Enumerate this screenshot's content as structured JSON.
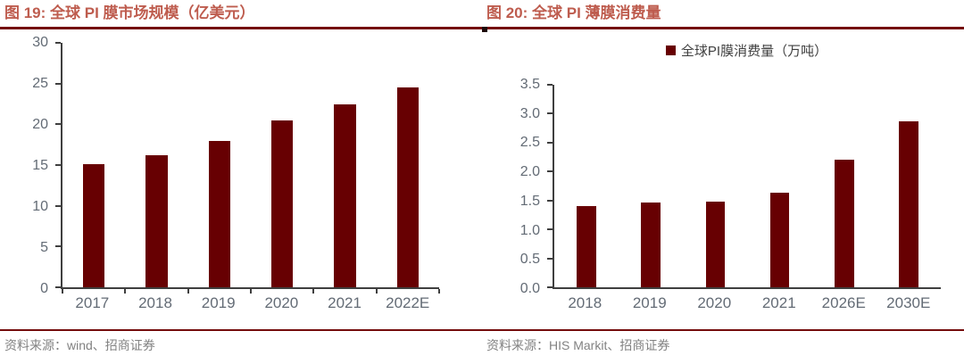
{
  "page": {
    "background": "#ffffff"
  },
  "colors": {
    "bar": "#670002",
    "title": "#be5c4e",
    "rule": "#740c0c",
    "axis": "#3f3f3f",
    "tick": "#636b75",
    "legend": "#3f3f3f",
    "source": "#828282"
  },
  "chart_data": [
    {
      "type": "bar",
      "title": "图 19: 全球 PI 膜市场规模（亿美元）",
      "categories": [
        "2017",
        "2018",
        "2019",
        "2020",
        "2021",
        "2022E"
      ],
      "values": [
        15.1,
        16.2,
        18.0,
        20.5,
        22.5,
        24.5
      ],
      "ylim": [
        0,
        30
      ],
      "y_ticks": [
        "0",
        "5",
        "10",
        "15",
        "20",
        "25",
        "30"
      ],
      "xlabel": "",
      "ylabel": "",
      "grid": false,
      "x_boundary_ticks": true,
      "bar_color": "#670002",
      "source": "资料来源：wind、招商证券"
    },
    {
      "type": "bar",
      "title": "图 20: 全球 PI 薄膜消费量",
      "legend": "全球PI膜消费量（万吨）",
      "legend_position": "top-center",
      "categories": [
        "2018",
        "2019",
        "2020",
        "2021",
        "2026E",
        "2030E"
      ],
      "values": [
        1.4,
        1.46,
        1.48,
        1.63,
        2.2,
        2.87
      ],
      "ylim": [
        0,
        3.5
      ],
      "y_ticks": [
        "0.0",
        "0.5",
        "1.0",
        "1.5",
        "2.0",
        "2.5",
        "3.0",
        "3.5"
      ],
      "xlabel": "",
      "ylabel": "",
      "grid": false,
      "x_boundary_ticks": false,
      "bar_color": "#670002",
      "source": "资料来源：HIS Markit、招商证券"
    }
  ]
}
